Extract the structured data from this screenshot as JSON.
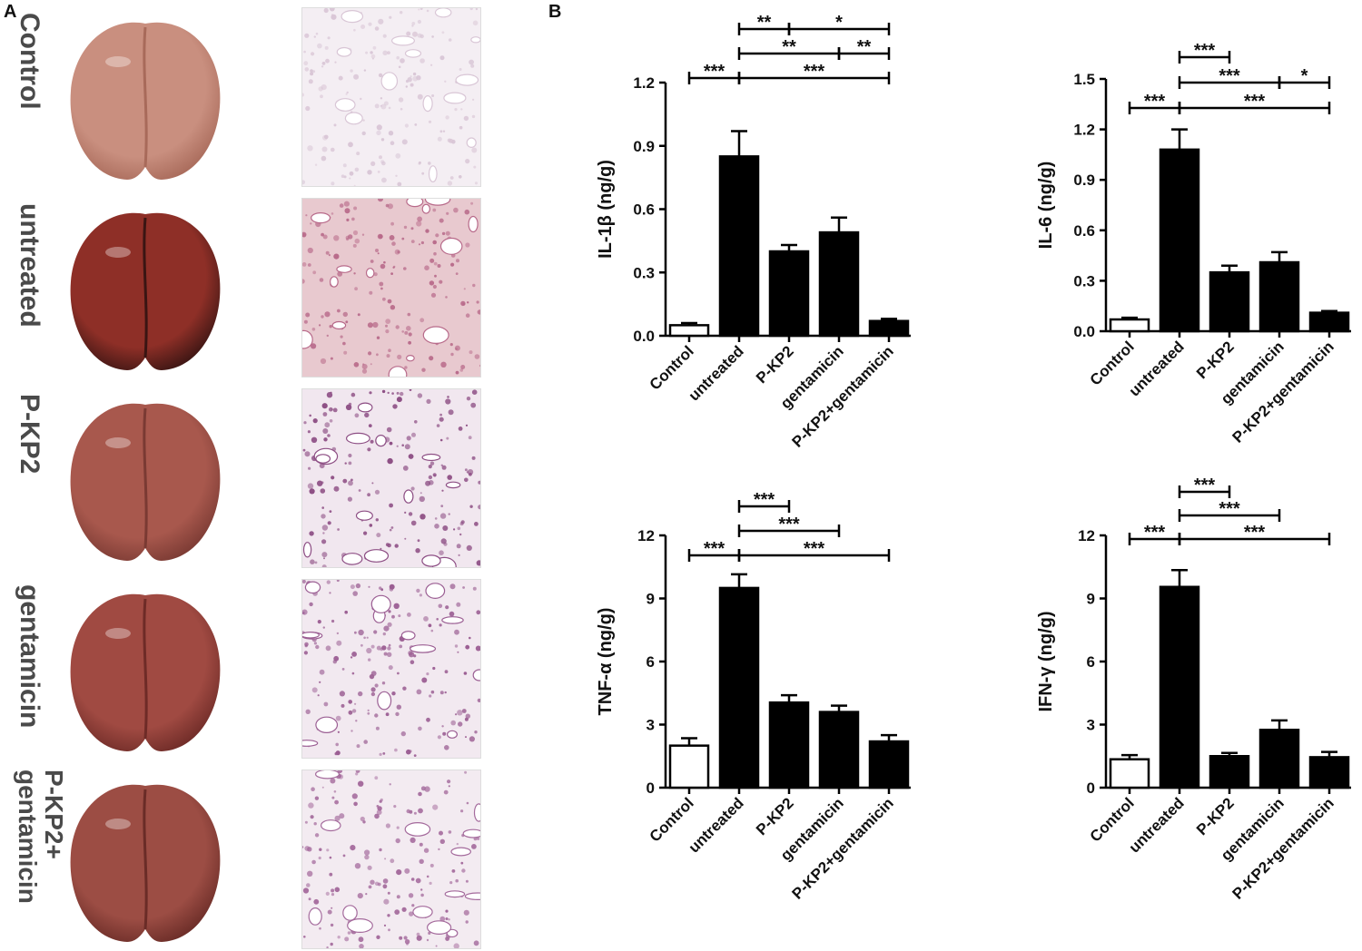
{
  "panel_a": {
    "letter": "A",
    "rows": [
      {
        "label_lines": [
          "Control"
        ],
        "organ_color": "#c98f7f",
        "organ_dark": "#a86a5a",
        "histo_color": "#d9c6d6",
        "histo_tint": "#f4eef3"
      },
      {
        "label_lines": [
          "untreated"
        ],
        "organ_color": "#8e2f27",
        "organ_dark": "#3a1513",
        "histo_color": "#b86a8a",
        "histo_tint": "#e8c9cf"
      },
      {
        "label_lines": [
          "P-KP2"
        ],
        "organ_color": "#a8584d",
        "organ_dark": "#7a3a33",
        "histo_color": "#8d4e84",
        "histo_tint": "#f1e7ef"
      },
      {
        "label_lines": [
          "gentamicin"
        ],
        "organ_color": "#a04a42",
        "organ_dark": "#6e2b27",
        "histo_color": "#9b5e93",
        "histo_tint": "#f2e9f0"
      },
      {
        "label_lines": [
          "P-KP2+",
          "gentamicin"
        ],
        "organ_color": "#9c4d44",
        "organ_dark": "#6a2c27",
        "histo_color": "#a46a9c",
        "histo_tint": "#f3ebf1"
      }
    ]
  },
  "panel_b": {
    "letter": "B"
  },
  "chart_data": [
    {
      "type": "bar",
      "ylabel": "IL-1β (ng/g)",
      "categories": [
        "Control",
        "untreated",
        "P-KP2",
        "gentamicin",
        "P-KP2+gentamicin"
      ],
      "values": [
        0.05,
        0.85,
        0.4,
        0.49,
        0.07
      ],
      "errors": [
        0.01,
        0.12,
        0.03,
        0.07,
        0.01
      ],
      "fill": [
        "white",
        "black",
        "black",
        "black",
        "black"
      ],
      "ylim": [
        0,
        1.2
      ],
      "yticks": [
        "0.0",
        "0.3",
        "0.6",
        "0.9",
        "1.2"
      ],
      "significance": [
        {
          "from": 0,
          "to": 1,
          "text": "***",
          "level": 1
        },
        {
          "from": 1,
          "to": 4,
          "text": "***",
          "level": 1
        },
        {
          "from": 1,
          "to": 3,
          "text": "**",
          "level": 2
        },
        {
          "from": 3,
          "to": 4,
          "text": "**",
          "level": 2
        },
        {
          "from": 1,
          "to": 2,
          "text": "**",
          "level": 3
        },
        {
          "from": 2,
          "to": 4,
          "text": "*",
          "level": 3
        }
      ]
    },
    {
      "type": "bar",
      "ylabel": "IL-6 (ng/g)",
      "categories": [
        "Control",
        "untreated",
        "P-KP2",
        "gentamicin",
        "P-KP2+gentamicin"
      ],
      "values": [
        0.07,
        1.08,
        0.35,
        0.41,
        0.11
      ],
      "errors": [
        0.01,
        0.12,
        0.04,
        0.06,
        0.01
      ],
      "fill": [
        "white",
        "black",
        "black",
        "black",
        "black"
      ],
      "ylim": [
        0,
        1.5
      ],
      "yticks": [
        "0.0",
        "0.3",
        "0.6",
        "0.9",
        "1.2",
        "1.5"
      ],
      "significance": [
        {
          "from": 0,
          "to": 1,
          "text": "***",
          "level": 1
        },
        {
          "from": 1,
          "to": 4,
          "text": "***",
          "level": 1
        },
        {
          "from": 1,
          "to": 3,
          "text": "***",
          "level": 2
        },
        {
          "from": 3,
          "to": 4,
          "text": "*",
          "level": 2
        },
        {
          "from": 1,
          "to": 2,
          "text": "***",
          "level": 3
        }
      ]
    },
    {
      "type": "bar",
      "ylabel": "TNF-α (ng/g)",
      "categories": [
        "Control",
        "untreated",
        "P-KP2",
        "gentamicin",
        "P-KP2+gentamicin"
      ],
      "values": [
        2.0,
        9.5,
        4.05,
        3.6,
        2.2
      ],
      "errors": [
        0.35,
        0.65,
        0.35,
        0.3,
        0.3
      ],
      "fill": [
        "white",
        "black",
        "black",
        "black",
        "black"
      ],
      "ylim": [
        0,
        12
      ],
      "yticks": [
        "0",
        "3",
        "6",
        "9",
        "12"
      ],
      "significance": [
        {
          "from": 0,
          "to": 1,
          "text": "***",
          "level": 1
        },
        {
          "from": 1,
          "to": 4,
          "text": "***",
          "level": 1
        },
        {
          "from": 1,
          "to": 3,
          "text": "***",
          "level": 2
        },
        {
          "from": 1,
          "to": 2,
          "text": "***",
          "level": 3
        }
      ]
    },
    {
      "type": "bar",
      "ylabel": "IFN-γ (ng/g)",
      "categories": [
        "Control",
        "untreated",
        "P-KP2",
        "gentamicin",
        "P-KP2+gentamicin"
      ],
      "values": [
        1.35,
        9.55,
        1.5,
        2.75,
        1.45
      ],
      "errors": [
        0.2,
        0.8,
        0.15,
        0.45,
        0.25
      ],
      "fill": [
        "white",
        "black",
        "black",
        "black",
        "black"
      ],
      "ylim": [
        0,
        12
      ],
      "yticks": [
        "0",
        "3",
        "6",
        "9",
        "12"
      ],
      "significance": [
        {
          "from": 0,
          "to": 1,
          "text": "***",
          "level": 1
        },
        {
          "from": 1,
          "to": 4,
          "text": "***",
          "level": 1
        },
        {
          "from": 1,
          "to": 3,
          "text": "***",
          "level": 2
        },
        {
          "from": 1,
          "to": 2,
          "text": "***",
          "level": 3
        }
      ]
    }
  ]
}
